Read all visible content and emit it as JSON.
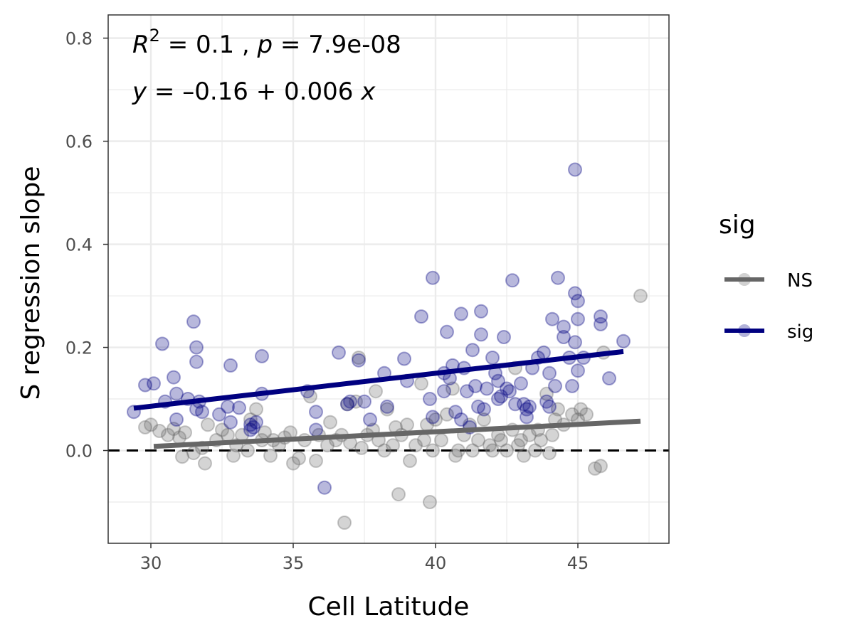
{
  "chart_data": {
    "type": "scatter",
    "xlabel": "Cell Latitude",
    "ylabel": "S regression slope",
    "xlim": [
      28.5,
      48.2
    ],
    "ylim": [
      -0.18,
      0.845
    ],
    "x_ticks": [
      30,
      35,
      40,
      45
    ],
    "y_ticks": [
      0.0,
      0.2,
      0.4,
      0.6,
      0.8
    ],
    "x_tick_labels": [
      "30",
      "35",
      "40",
      "45"
    ],
    "y_tick_labels": [
      "0.0",
      "0.2",
      "0.4",
      "0.6",
      "0.8"
    ],
    "grid": true,
    "reference_line": {
      "y": 0.0,
      "style": "dashed"
    },
    "legend": {
      "title": "sig",
      "position": "right",
      "entries": [
        {
          "label": "NS",
          "color": "#666666"
        },
        {
          "label": "sig",
          "color": "#000080"
        }
      ]
    },
    "annotations": {
      "line1": {
        "r2_sym": "R",
        "r2_sup": "2",
        "r2_rest": " = 0.1 , ",
        "p_sym": "p",
        "p_rest": " = 7.9e-08"
      },
      "line2": {
        "y_sym": "y",
        "eq_mid": " = –0.16 + 0.006 ",
        "x_sym": "x"
      }
    },
    "series": [
      {
        "name": "NS",
        "color": "#666666",
        "fit": {
          "x": [
            30.1,
            47.2
          ],
          "y": [
            0.008,
            0.057
          ]
        },
        "points": [
          [
            29.8,
            0.045
          ],
          [
            30.0,
            0.05
          ],
          [
            30.3,
            0.038
          ],
          [
            30.6,
            0.03
          ],
          [
            30.8,
            0.042
          ],
          [
            31.0,
            0.025
          ],
          [
            31.2,
            0.035
          ],
          [
            31.1,
            -0.012
          ],
          [
            31.5,
            -0.005
          ],
          [
            31.8,
            0.005
          ],
          [
            31.9,
            -0.025
          ],
          [
            32.0,
            0.05
          ],
          [
            32.3,
            0.02
          ],
          [
            32.5,
            0.04
          ],
          [
            32.7,
            0.03
          ],
          [
            32.9,
            -0.01
          ],
          [
            33.0,
            0.01
          ],
          [
            33.2,
            0.03
          ],
          [
            33.4,
            0.0
          ],
          [
            33.5,
            0.06
          ],
          [
            33.7,
            0.08
          ],
          [
            33.9,
            0.02
          ],
          [
            34.0,
            0.035
          ],
          [
            34.2,
            -0.01
          ],
          [
            34.3,
            0.02
          ],
          [
            34.5,
            0.01
          ],
          [
            34.7,
            0.025
          ],
          [
            34.9,
            0.035
          ],
          [
            35.0,
            -0.025
          ],
          [
            35.2,
            -0.015
          ],
          [
            35.4,
            0.02
          ],
          [
            35.6,
            0.105
          ],
          [
            35.8,
            -0.02
          ],
          [
            35.9,
            0.03
          ],
          [
            36.2,
            0.01
          ],
          [
            36.3,
            0.055
          ],
          [
            36.5,
            0.02
          ],
          [
            36.7,
            0.03
          ],
          [
            36.8,
            -0.14
          ],
          [
            36.9,
            0.09
          ],
          [
            37.0,
            0.015
          ],
          [
            37.2,
            0.095
          ],
          [
            37.3,
            0.18
          ],
          [
            37.4,
            0.005
          ],
          [
            37.6,
            0.03
          ],
          [
            37.8,
            0.04
          ],
          [
            37.9,
            0.115
          ],
          [
            38.0,
            0.02
          ],
          [
            38.2,
            0.0
          ],
          [
            38.3,
            0.08
          ],
          [
            38.5,
            0.01
          ],
          [
            38.6,
            0.045
          ],
          [
            38.7,
            -0.085
          ],
          [
            38.8,
            0.03
          ],
          [
            39.0,
            0.05
          ],
          [
            39.1,
            -0.02
          ],
          [
            39.3,
            0.01
          ],
          [
            39.5,
            0.13
          ],
          [
            39.6,
            0.02
          ],
          [
            39.7,
            0.05
          ],
          [
            39.8,
            -0.1
          ],
          [
            39.9,
            0.0
          ],
          [
            40.0,
            0.06
          ],
          [
            40.2,
            0.02
          ],
          [
            40.4,
            0.07
          ],
          [
            40.6,
            0.12
          ],
          [
            40.7,
            -0.01
          ],
          [
            40.8,
            0.0
          ],
          [
            41.0,
            0.03
          ],
          [
            41.2,
            0.05
          ],
          [
            41.3,
            0.0
          ],
          [
            41.5,
            0.02
          ],
          [
            41.7,
            0.06
          ],
          [
            41.9,
            0.01
          ],
          [
            42.0,
            0.0
          ],
          [
            42.2,
            0.03
          ],
          [
            42.3,
            0.02
          ],
          [
            42.5,
            0.0
          ],
          [
            42.7,
            0.04
          ],
          [
            42.8,
            0.16
          ],
          [
            42.9,
            0.01
          ],
          [
            43.0,
            0.02
          ],
          [
            43.1,
            -0.01
          ],
          [
            43.3,
            0.03
          ],
          [
            43.5,
            0.0
          ],
          [
            43.6,
            0.04
          ],
          [
            43.7,
            0.02
          ],
          [
            43.9,
            0.11
          ],
          [
            44.0,
            -0.005
          ],
          [
            44.1,
            0.03
          ],
          [
            44.2,
            0.06
          ],
          [
            44.3,
            0.08
          ],
          [
            44.5,
            0.05
          ],
          [
            44.8,
            0.07
          ],
          [
            45.0,
            0.06
          ],
          [
            45.1,
            0.08
          ],
          [
            45.3,
            0.07
          ],
          [
            45.6,
            -0.035
          ],
          [
            45.8,
            -0.03
          ],
          [
            45.9,
            0.19
          ],
          [
            47.2,
            0.3
          ]
        ]
      },
      {
        "name": "sig",
        "color": "#000080",
        "fit": {
          "x": [
            29.4,
            46.6
          ],
          "y": [
            0.082,
            0.192
          ]
        },
        "points": [
          [
            29.4,
            0.075
          ],
          [
            29.8,
            0.127
          ],
          [
            30.1,
            0.13
          ],
          [
            30.4,
            0.207
          ],
          [
            30.5,
            0.095
          ],
          [
            30.8,
            0.142
          ],
          [
            30.9,
            0.11
          ],
          [
            30.9,
            0.06
          ],
          [
            31.3,
            0.1
          ],
          [
            31.5,
            0.25
          ],
          [
            31.6,
            0.2
          ],
          [
            31.6,
            0.172
          ],
          [
            31.6,
            0.08
          ],
          [
            31.7,
            0.095
          ],
          [
            31.8,
            0.075
          ],
          [
            32.4,
            0.07
          ],
          [
            32.7,
            0.085
          ],
          [
            32.8,
            0.165
          ],
          [
            32.8,
            0.055
          ],
          [
            33.1,
            0.083
          ],
          [
            33.5,
            0.05
          ],
          [
            33.5,
            0.04
          ],
          [
            33.6,
            0.045
          ],
          [
            33.7,
            0.055
          ],
          [
            33.9,
            0.11
          ],
          [
            33.9,
            0.183
          ],
          [
            35.5,
            0.115
          ],
          [
            35.8,
            0.075
          ],
          [
            35.8,
            0.04
          ],
          [
            36.1,
            -0.072
          ],
          [
            36.6,
            0.19
          ],
          [
            36.9,
            0.09
          ],
          [
            37.0,
            0.095
          ],
          [
            37.3,
            0.175
          ],
          [
            37.5,
            0.095
          ],
          [
            37.7,
            0.06
          ],
          [
            38.2,
            0.15
          ],
          [
            38.3,
            0.085
          ],
          [
            38.9,
            0.178
          ],
          [
            39.0,
            0.135
          ],
          [
            39.5,
            0.26
          ],
          [
            39.8,
            0.1
          ],
          [
            39.9,
            0.065
          ],
          [
            39.9,
            0.335
          ],
          [
            40.3,
            0.15
          ],
          [
            40.3,
            0.115
          ],
          [
            40.4,
            0.23
          ],
          [
            40.5,
            0.14
          ],
          [
            40.6,
            0.165
          ],
          [
            40.7,
            0.075
          ],
          [
            40.9,
            0.265
          ],
          [
            40.9,
            0.06
          ],
          [
            41.0,
            0.16
          ],
          [
            41.1,
            0.115
          ],
          [
            41.2,
            0.045
          ],
          [
            41.3,
            0.195
          ],
          [
            41.4,
            0.125
          ],
          [
            41.5,
            0.085
          ],
          [
            41.6,
            0.225
          ],
          [
            41.6,
            0.27
          ],
          [
            41.7,
            0.08
          ],
          [
            41.8,
            0.12
          ],
          [
            42.0,
            0.18
          ],
          [
            42.1,
            0.15
          ],
          [
            42.2,
            0.135
          ],
          [
            42.2,
            0.1
          ],
          [
            42.3,
            0.105
          ],
          [
            42.4,
            0.22
          ],
          [
            42.5,
            0.12
          ],
          [
            42.6,
            0.115
          ],
          [
            42.7,
            0.33
          ],
          [
            42.8,
            0.09
          ],
          [
            43.0,
            0.13
          ],
          [
            43.1,
            0.09
          ],
          [
            43.2,
            0.08
          ],
          [
            43.2,
            0.065
          ],
          [
            43.3,
            0.085
          ],
          [
            43.4,
            0.16
          ],
          [
            43.6,
            0.18
          ],
          [
            43.8,
            0.19
          ],
          [
            43.9,
            0.095
          ],
          [
            44.0,
            0.15
          ],
          [
            44.0,
            0.085
          ],
          [
            44.1,
            0.255
          ],
          [
            44.2,
            0.125
          ],
          [
            44.3,
            0.335
          ],
          [
            44.5,
            0.24
          ],
          [
            44.5,
            0.22
          ],
          [
            44.7,
            0.18
          ],
          [
            44.8,
            0.125
          ],
          [
            44.9,
            0.545
          ],
          [
            44.9,
            0.305
          ],
          [
            45.0,
            0.29
          ],
          [
            45.0,
            0.255
          ],
          [
            44.9,
            0.21
          ],
          [
            45.0,
            0.155
          ],
          [
            45.2,
            0.18
          ],
          [
            45.8,
            0.26
          ],
          [
            45.8,
            0.245
          ],
          [
            46.1,
            0.14
          ],
          [
            46.6,
            0.212
          ]
        ]
      }
    ]
  }
}
